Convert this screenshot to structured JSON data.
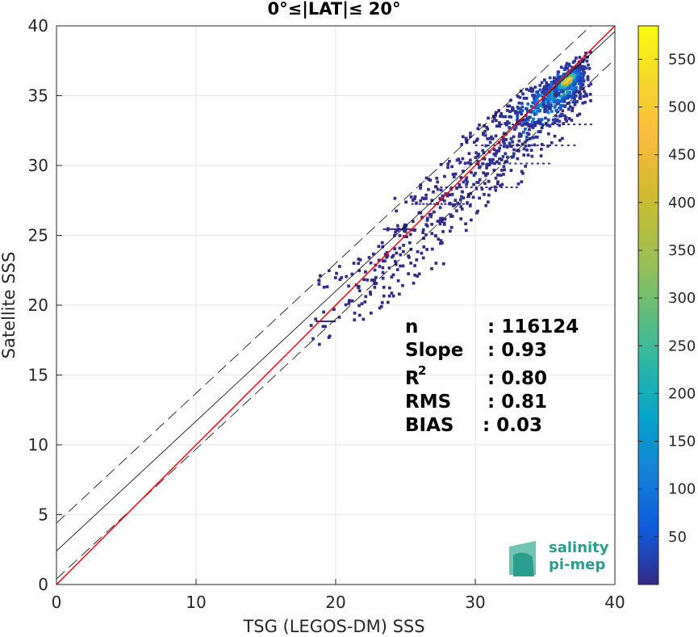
{
  "chart_data": {
    "type": "heatmap",
    "title": "0°≤|LAT|≤ 20°",
    "xlabel": "TSG (LEGOS-DM) SSS",
    "ylabel": "Satellite SSS",
    "xlim": [
      0,
      40
    ],
    "ylim": [
      0,
      40
    ],
    "xticks": [
      "0",
      "10",
      "20",
      "30",
      "40"
    ],
    "yticks": [
      "0",
      "5",
      "10",
      "15",
      "20",
      "25",
      "30",
      "35",
      "40"
    ],
    "grid": true,
    "colorbar": {
      "range": [
        0,
        585
      ],
      "ticks": [
        "50",
        "100",
        "150",
        "200",
        "250",
        "300",
        "350",
        "400",
        "450",
        "500",
        "550"
      ],
      "colormap": "parula"
    },
    "density_clusters": [
      {
        "x": 36.5,
        "y": 36.0,
        "count": 580
      },
      {
        "x": 36.2,
        "y": 35.5,
        "count": 480
      },
      {
        "x": 35.8,
        "y": 35.2,
        "count": 300
      },
      {
        "x": 35.2,
        "y": 34.6,
        "count": 180
      },
      {
        "x": 34.5,
        "y": 34.0,
        "count": 120
      },
      {
        "x": 33.5,
        "y": 33.0,
        "count": 70
      },
      {
        "x": 32.5,
        "y": 32.0,
        "count": 40
      },
      {
        "x": 31.0,
        "y": 30.5,
        "count": 20
      },
      {
        "x": 29.5,
        "y": 29.0,
        "count": 10
      },
      {
        "x": 28.0,
        "y": 27.5,
        "count": 5
      },
      {
        "x": 26.5,
        "y": 26.0,
        "count": 3
      },
      {
        "x": 24.5,
        "y": 23.0,
        "count": 2
      },
      {
        "x": 22.0,
        "y": 21.5,
        "count": 1
      }
    ],
    "lines": {
      "identity": {
        "intercept": 0,
        "slope": 1,
        "color": "#ff0000"
      },
      "regression": {
        "intercept": 2.4,
        "slope": 0.93,
        "color": "#000000"
      },
      "upper_bound": {
        "intercept": 4.4,
        "slope": 0.93,
        "color": "#000000",
        "dash": true
      },
      "lower_bound": {
        "intercept": 0.4,
        "slope": 0.93,
        "color": "#000000",
        "dash": true
      }
    },
    "stats": {
      "n_label": "n",
      "n_value": ": 116124",
      "slope_label": "Slope",
      "slope_value": ": 0.93",
      "r2_label": "R",
      "r2_sup": "2",
      "r2_value": ": 0.80",
      "rms_label": "RMS",
      "rms_value": ": 0.81",
      "bias_label": "BIAS",
      "bias_value": ": 0.03"
    }
  },
  "logo": {
    "line1": "salinity",
    "line2": "pi-mep",
    "color": "#2a9d8f"
  }
}
